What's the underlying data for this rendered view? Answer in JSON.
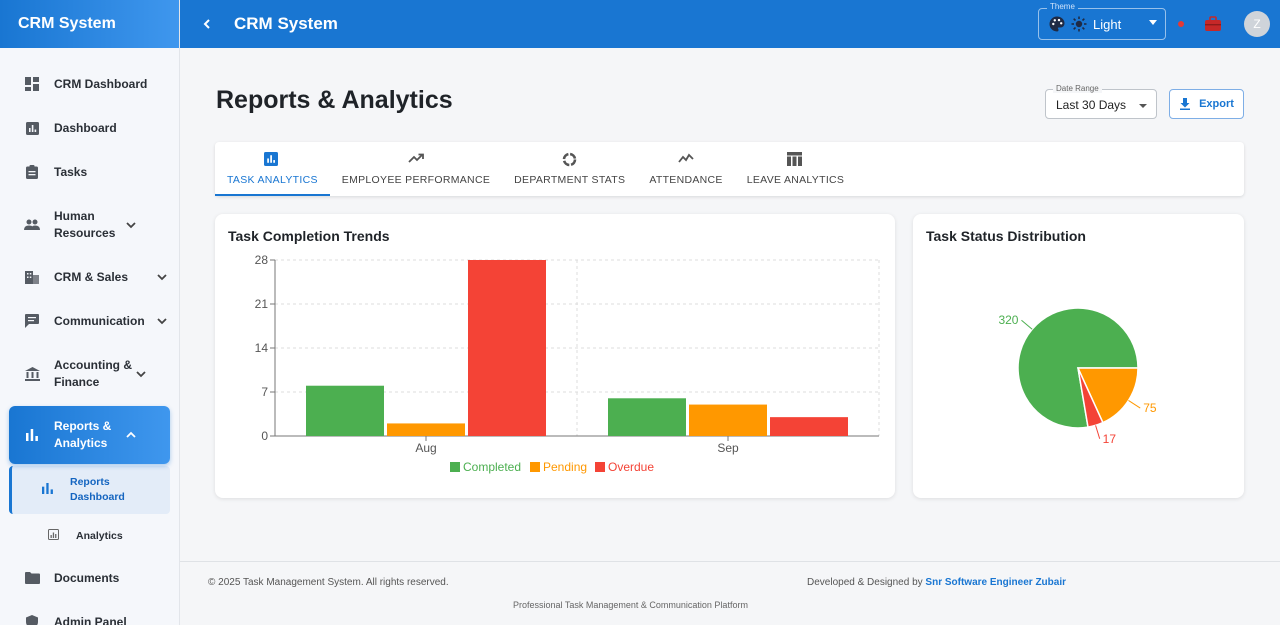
{
  "sidebar": {
    "brand": "CRM System",
    "items": [
      {
        "label": "CRM Dashboard",
        "icon": "dashboard-icon"
      },
      {
        "label": "Dashboard",
        "icon": "bar-chart-icon"
      },
      {
        "label": "Tasks",
        "icon": "clipboard-icon"
      },
      {
        "label": "Human Resources",
        "icon": "people-icon"
      },
      {
        "label": "CRM & Sales",
        "icon": "building-icon"
      },
      {
        "label": "Communication",
        "icon": "chat-icon"
      },
      {
        "label": "Accounting & Finance",
        "icon": "bank-icon"
      },
      {
        "label": "Reports & Analytics",
        "icon": "bar-chart-icon"
      }
    ],
    "sub_items": [
      {
        "label": "Reports Dashboard",
        "icon": "bar-chart-icon"
      },
      {
        "label": "Analytics",
        "icon": "analytics-icon"
      }
    ],
    "more_items": [
      {
        "label": "Documents",
        "icon": "folder-icon"
      },
      {
        "label": "Admin Panel",
        "icon": "shield-icon"
      }
    ]
  },
  "topbar": {
    "title": "CRM System",
    "theme_label": "Theme",
    "theme_value": "Light",
    "avatar_initial": "Z"
  },
  "page": {
    "title": "Reports & Analytics",
    "date_range_label": "Date Range",
    "date_range_value": "Last 30 Days",
    "export_label": "Export"
  },
  "tabs": [
    {
      "label": "TASK ANALYTICS",
      "icon": "bar-chart-icon"
    },
    {
      "label": "EMPLOYEE PERFORMANCE",
      "icon": "trending-up-icon"
    },
    {
      "label": "DEPARTMENT STATS",
      "icon": "donut-icon"
    },
    {
      "label": "ATTENDANCE",
      "icon": "line-chart-icon"
    },
    {
      "label": "LEAVE ANALYTICS",
      "icon": "table-icon"
    }
  ],
  "colors": {
    "primary": "#1976d2",
    "completed": "#4caf50",
    "pending": "#ff9800",
    "overdue": "#f44336"
  },
  "chart_data": [
    {
      "type": "bar",
      "title": "Task Completion Trends",
      "categories": [
        "Aug",
        "Sep"
      ],
      "series": [
        {
          "name": "Completed",
          "values": [
            8,
            6
          ]
        },
        {
          "name": "Pending",
          "values": [
            2,
            5
          ]
        },
        {
          "name": "Overdue",
          "values": [
            28,
            3
          ]
        }
      ],
      "yticks": [
        0,
        7,
        14,
        21,
        28
      ],
      "ylim": [
        0,
        28
      ],
      "grid": true,
      "legend": "bottom"
    },
    {
      "type": "pie",
      "title": "Task Status Distribution",
      "slices": [
        {
          "name": "Completed",
          "value": 320
        },
        {
          "name": "Pending",
          "value": 75
        },
        {
          "name": "Overdue",
          "value": 17
        }
      ]
    }
  ],
  "footer": {
    "copyright": "© 2025 Task Management System. All rights reserved.",
    "developed_prefix": "Developed & Designed by",
    "developer": "Snr Software Engineer Zubair",
    "tagline": "Professional Task Management & Communication Platform"
  }
}
